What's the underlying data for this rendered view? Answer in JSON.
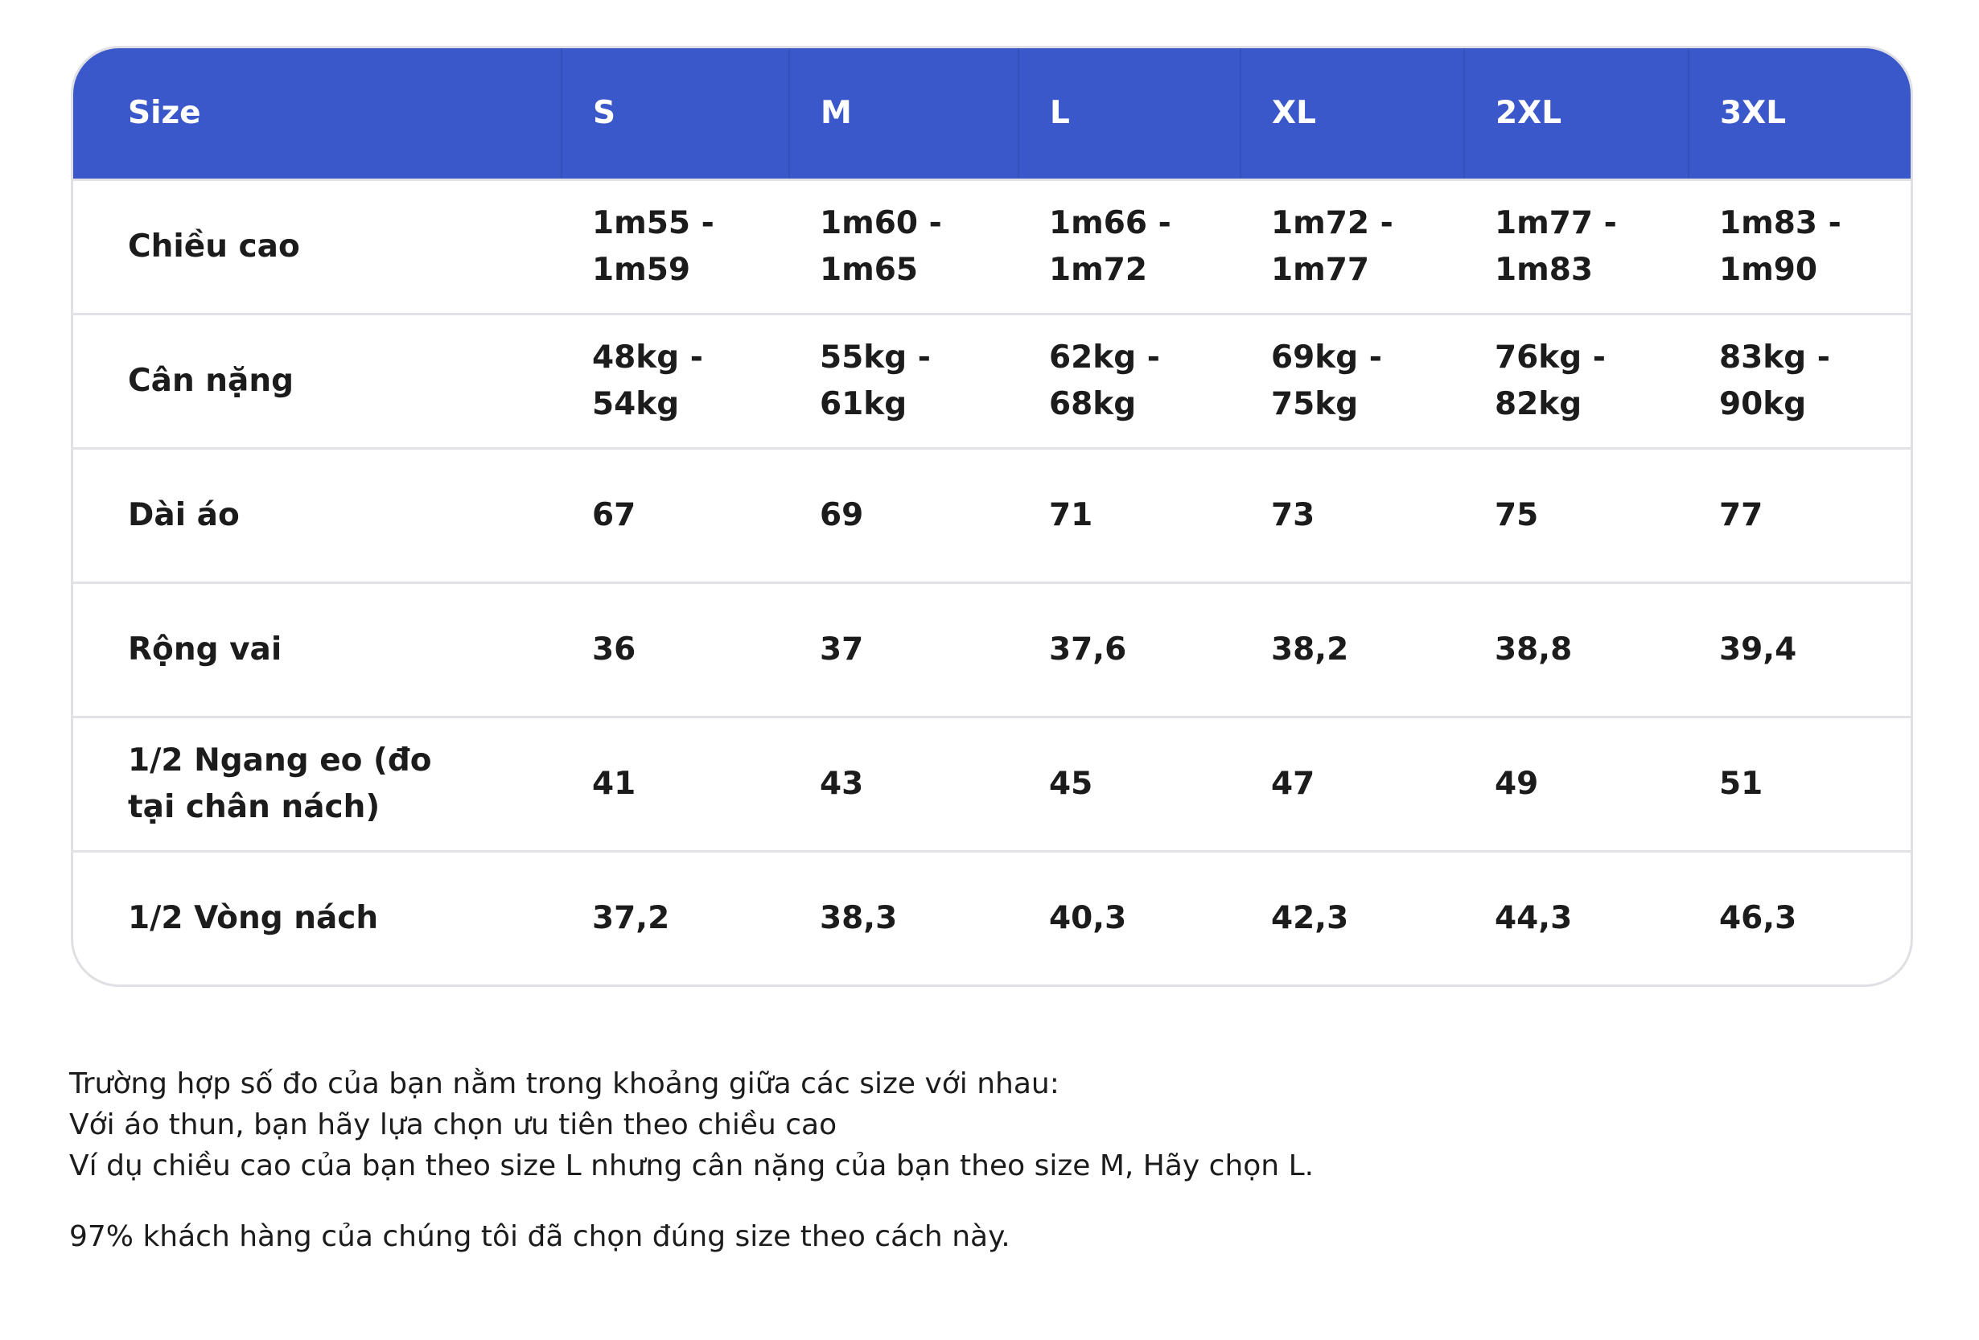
{
  "table": {
    "header": [
      "Size",
      "S",
      "M",
      "L",
      "XL",
      "2XL",
      "3XL"
    ],
    "rows": [
      [
        "Chiều cao",
        "1m55 - 1m59",
        "1m60 - 1m65",
        "1m66 - 1m72",
        "1m72 - 1m77",
        "1m77 - 1m83",
        "1m83 - 1m90"
      ],
      [
        "Cân nặng",
        "48kg - 54kg",
        "55kg - 61kg",
        "62kg - 68kg",
        "69kg - 75kg",
        "76kg - 82kg",
        "83kg - 90kg"
      ],
      [
        "Dài áo",
        "67",
        "69",
        "71",
        "73",
        "75",
        "77"
      ],
      [
        "Rộng vai",
        "36",
        "37",
        "37,6",
        "38,2",
        "38,8",
        "39,4"
      ],
      [
        "1/2 Ngang eo (đo tại chân nách)",
        "41",
        "43",
        "45",
        "47",
        "49",
        "51"
      ],
      [
        "1/2 Vòng nách",
        "37,2",
        "38,3",
        "40,3",
        "42,3",
        "44,3",
        "46,3"
      ]
    ]
  },
  "notes": [
    "Trường hợp số đo của bạn nằm trong khoảng giữa các size với nhau:",
    "Với áo thun, bạn hãy lựa chọn ưu tiên theo chiều cao",
    "Ví dụ chiều cao của bạn theo size L nhưng cân nặng của bạn theo size M, Hãy chọn L."
  ],
  "footnote": "97% khách hàng của chúng tôi đã chọn đúng size theo cách này."
}
